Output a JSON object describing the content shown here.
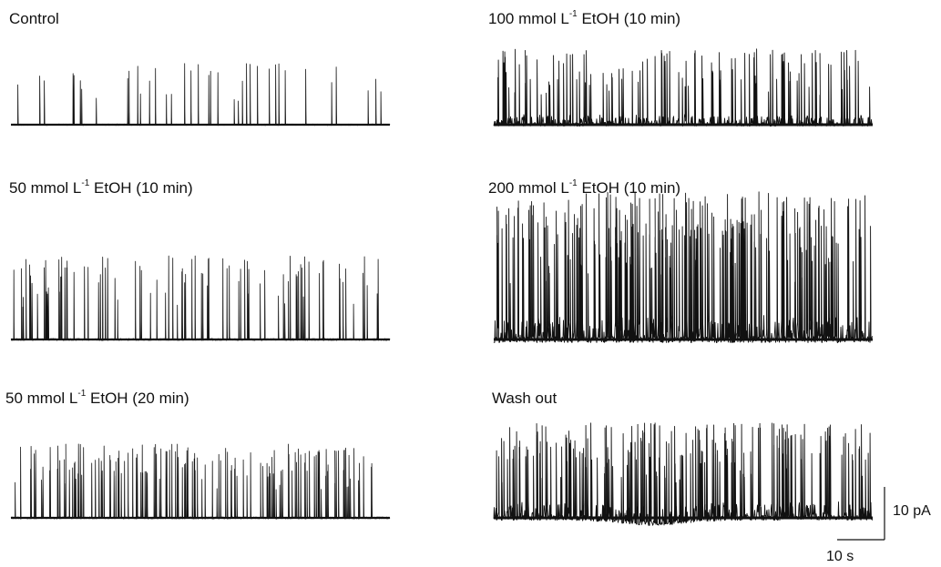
{
  "chart_data": {
    "type": "line",
    "panels": [
      {
        "label_prefix": "Control",
        "label_sup": "",
        "label_suffix": "",
        "column": "left",
        "row": 0,
        "event_count": 38,
        "peak_amplitude_pA": 13,
        "baseline_noise_pA": 0.6,
        "baseline_drift": "flat",
        "dense_background": false
      },
      {
        "label_prefix": "100 mmol L",
        "label_sup": "-1",
        "label_suffix": " EtOH (10 min)",
        "column": "right",
        "row": 0,
        "event_count": 120,
        "peak_amplitude_pA": 16,
        "baseline_noise_pA": 1.2,
        "baseline_drift": "flat",
        "dense_background": true
      },
      {
        "label_prefix": "50 mmol L",
        "label_sup": "-1",
        "label_suffix": " EtOH (10 min)",
        "column": "left",
        "row": 1,
        "event_count": 95,
        "peak_amplitude_pA": 16,
        "baseline_noise_pA": 0.8,
        "baseline_drift": "flat",
        "dense_background": false
      },
      {
        "label_prefix": "200 mmol L",
        "label_sup": "-1",
        "label_suffix": " EtOH (10 min)",
        "column": "right",
        "row": 1,
        "event_count": 260,
        "peak_amplitude_pA": 28,
        "baseline_noise_pA": 2.5,
        "baseline_drift": "flat",
        "dense_background": true
      },
      {
        "label_prefix": "50 mmol L",
        "label_sup": "-1",
        "label_suffix": " EtOH (20 min)",
        "column": "left",
        "row": 2,
        "event_count": 150,
        "peak_amplitude_pA": 14,
        "baseline_noise_pA": 0.8,
        "baseline_drift": "flat",
        "dense_background": false
      },
      {
        "label_prefix": "Wash out",
        "label_sup": "",
        "label_suffix": "",
        "column": "right",
        "row": 2,
        "event_count": 200,
        "peak_amplitude_pA": 18,
        "baseline_noise_pA": 1.8,
        "baseline_drift": "dip",
        "dense_background": true
      }
    ],
    "scale_bar": {
      "amplitude_value": 10,
      "amplitude_label": "10 pA",
      "time_value": 10,
      "time_label": "10 s"
    },
    "trace_duration_s": 80,
    "grid": false,
    "legend": false
  },
  "colors": {
    "trace": "#111111",
    "background": "#ffffff"
  }
}
